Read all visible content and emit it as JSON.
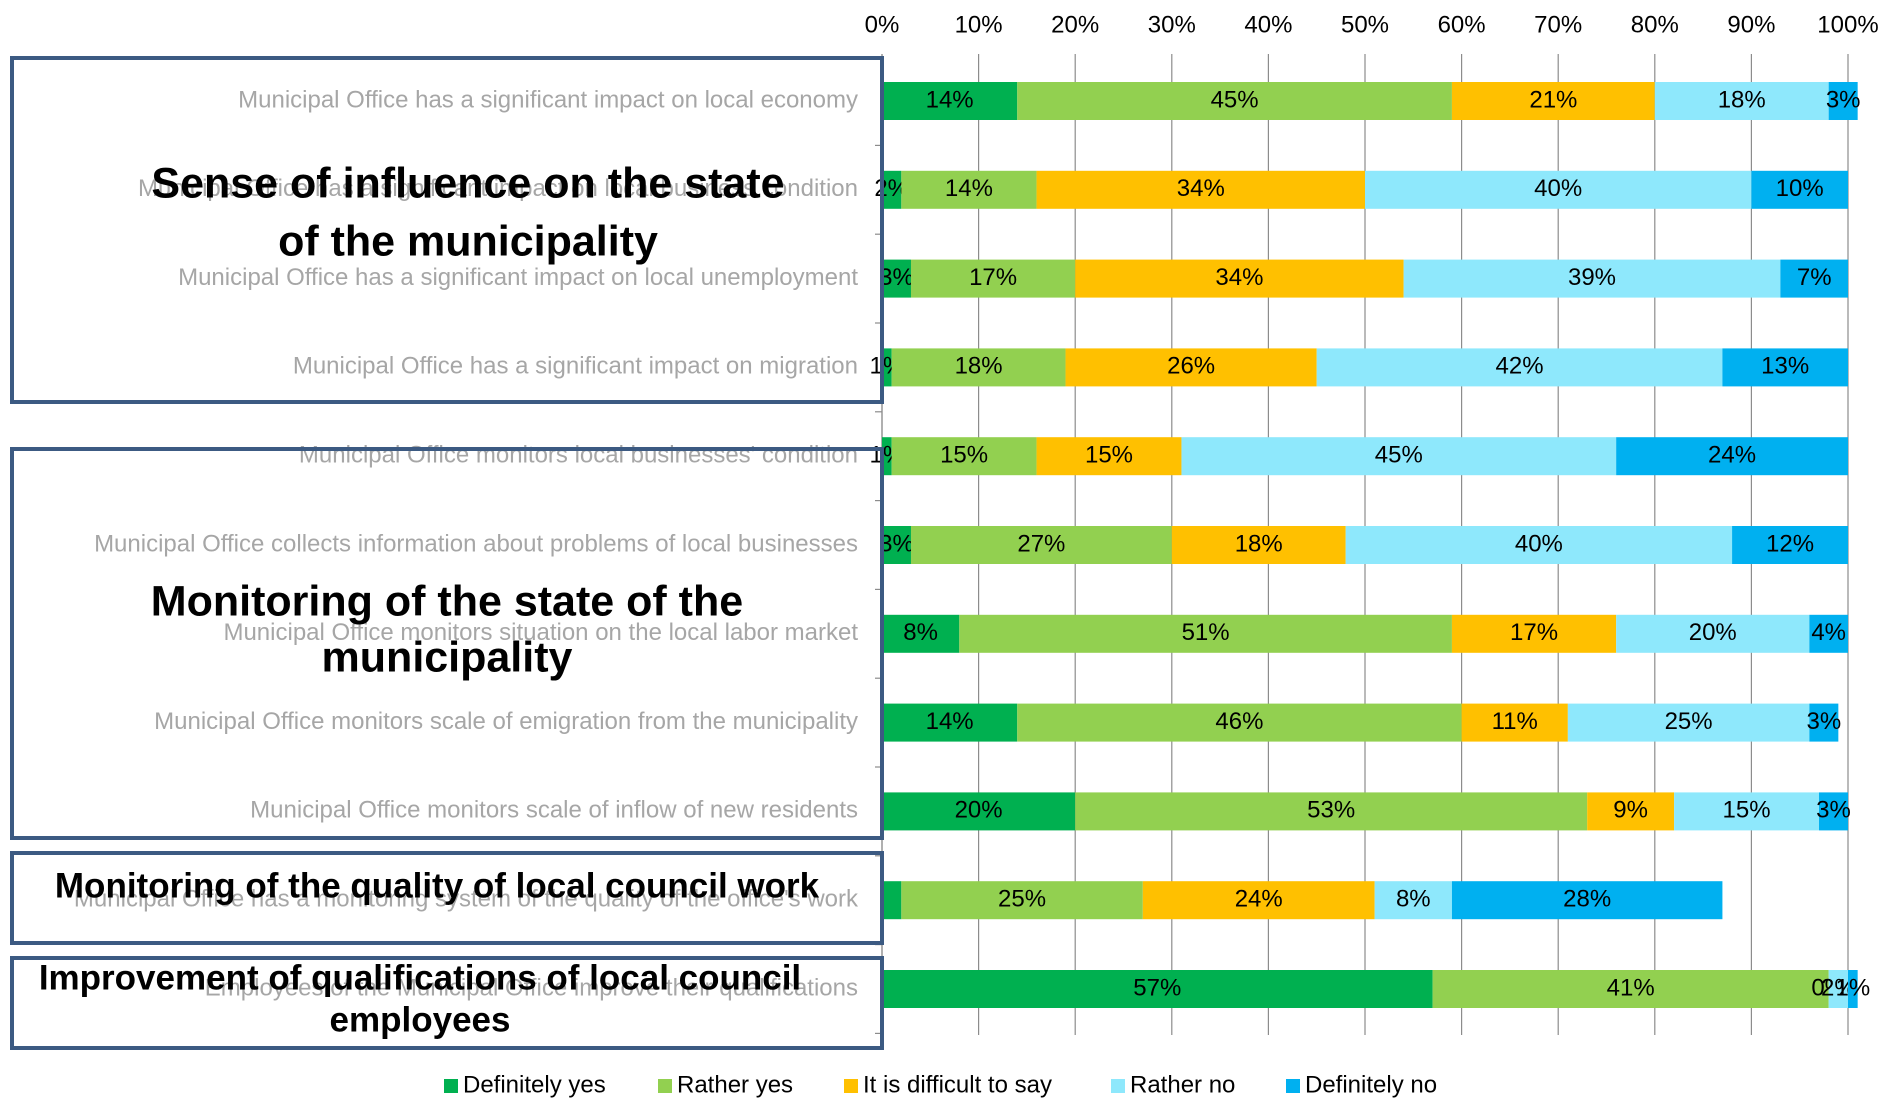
{
  "chart_data": {
    "type": "stacked-barh",
    "categories": [
      "Municipal Office has a significant impact on local economy",
      "Municipal Office has a significant impact on local business condition",
      "Municipal Office has a significant impact on local unemployment",
      "Municipal Office has a significant impact on migration",
      "Municipal Office monitors local businesses' condition",
      "Municipal Office collects information about problems of local businesses",
      "Municipal Office monitors situation on the local labor market",
      "Municipal Office monitors scale of emigration from the municipality",
      "Municipal Office monitors scale of inflow of new residents",
      "Municipal Office has a monitoring system of the quality of the office's work",
      "Employees of the Municipal Office improve their qualifications"
    ],
    "series": [
      {
        "name": "Definitely yes",
        "color": "#00b050",
        "values": [
          14,
          2,
          3,
          1,
          1,
          3,
          8,
          14,
          20,
          2,
          57
        ],
        "value_labels": [
          "14%",
          "2%",
          "3%",
          "1%",
          "1%",
          "3%",
          "8%",
          "14%",
          "20%",
          null,
          "57%"
        ]
      },
      {
        "name": "Rather yes",
        "color": "#92d050",
        "values": [
          45,
          14,
          17,
          18,
          15,
          27,
          51,
          46,
          53,
          25,
          41
        ],
        "value_labels": [
          "45%",
          "14%",
          "17%",
          "18%",
          "15%",
          "27%",
          "51%",
          "46%",
          "53%",
          "25%",
          "41%"
        ]
      },
      {
        "name": "It is difficult to say",
        "color": "#ffc000",
        "values": [
          21,
          34,
          34,
          26,
          15,
          18,
          17,
          11,
          9,
          24,
          0
        ],
        "value_labels": [
          "21%",
          "34%",
          "34%",
          "26%",
          "15%",
          "18%",
          "17%",
          "11%",
          "9%",
          "24%",
          "0%"
        ]
      },
      {
        "name": "Rather no",
        "color": "#8ee8fc",
        "values": [
          18,
          40,
          39,
          42,
          45,
          40,
          20,
          25,
          15,
          8,
          2
        ],
        "value_labels": [
          "18%",
          "40%",
          "39%",
          "42%",
          "45%",
          "40%",
          "20%",
          "25%",
          "15%",
          "8%",
          "2%"
        ]
      },
      {
        "name": "Definitely no",
        "color": "#00b0f0",
        "values": [
          3,
          10,
          7,
          13,
          24,
          12,
          4,
          3,
          3,
          28,
          1
        ],
        "value_labels": [
          "3%",
          "10%",
          "7%",
          "13%",
          "24%",
          "12%",
          "4%",
          "3%",
          "3%",
          "28%",
          "1%"
        ]
      }
    ],
    "xlim": [
      0,
      100
    ],
    "xticks": [
      {
        "value": 0,
        "label": "0%"
      },
      {
        "value": 10,
        "label": "10%"
      },
      {
        "value": 20,
        "label": "20%"
      },
      {
        "value": 30,
        "label": "30%"
      },
      {
        "value": 40,
        "label": "40%"
      },
      {
        "value": 50,
        "label": "50%"
      },
      {
        "value": 60,
        "label": "60%"
      },
      {
        "value": 70,
        "label": "70%"
      },
      {
        "value": 80,
        "label": "80%"
      },
      {
        "value": 90,
        "label": "90%"
      },
      {
        "value": 100,
        "label": "100%"
      }
    ],
    "grid": true,
    "legend": "bottom",
    "annotations": [
      {
        "lines": [
          "Sense of influence on the state",
          "of the municipality"
        ]
      },
      {
        "lines": [
          "Monitoring of the state of the",
          "municipality"
        ]
      },
      {
        "lines": [
          "Monitoring of the quality of local council work"
        ]
      },
      {
        "lines": [
          "Improvement of qualifications of local council",
          "employees"
        ]
      }
    ]
  }
}
